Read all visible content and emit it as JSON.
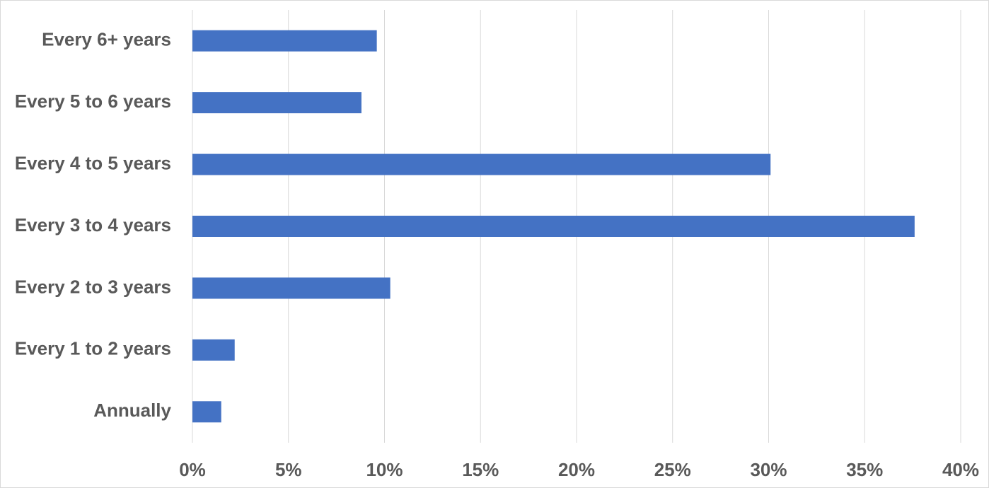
{
  "chart_data": {
    "type": "bar",
    "orientation": "horizontal",
    "categories": [
      "Annually",
      "Every 1 to 2 years",
      "Every 2 to 3 years",
      "Every 3 to 4 years",
      "Every 4 to 5 years",
      "Every 5 to 6 years",
      "Every 6+ years"
    ],
    "values": [
      1.5,
      2.2,
      10.3,
      37.6,
      30.1,
      8.8,
      9.6
    ],
    "color": "#4472c4",
    "xlim": [
      0,
      40
    ],
    "xticks": [
      {
        "value": 0,
        "label": "0%"
      },
      {
        "value": 5,
        "label": "5%"
      },
      {
        "value": 10,
        "label": "10%"
      },
      {
        "value": 15,
        "label": "15%"
      },
      {
        "value": 20,
        "label": "20%"
      },
      {
        "value": 25,
        "label": "25%"
      },
      {
        "value": 30,
        "label": "30%"
      },
      {
        "value": 35,
        "label": "35%"
      },
      {
        "value": 40,
        "label": "40%"
      }
    ],
    "grid": true
  }
}
